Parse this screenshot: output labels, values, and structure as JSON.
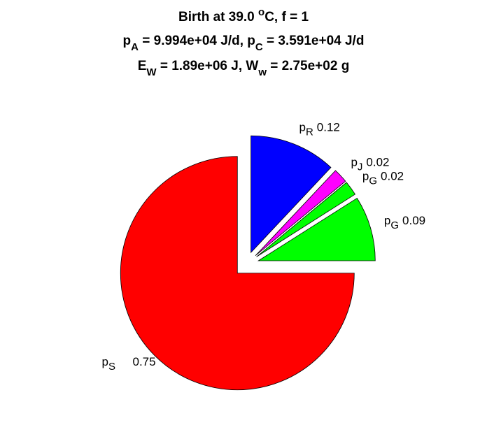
{
  "chart_data": {
    "type": "pie",
    "title": [
      [
        "Birth at 39.0 ",
        "o",
        "C, f = 1"
      ],
      [
        "p",
        "A",
        " = 9.994e+04 J/d, p",
        "C",
        " = 3.591e+04 J/d"
      ],
      [
        "E",
        "W",
        " = 1.89e+06 J, W",
        "w",
        " = 2.75e+02 g"
      ]
    ],
    "categories": [
      "pS",
      "pG",
      "pG",
      "pJ",
      "pR"
    ],
    "values": [
      0.75,
      0.09,
      0.02,
      0.02,
      0.12
    ],
    "colors": [
      "#ff0000",
      "#00ff00",
      "#00ff00",
      "#ff00ff",
      "#0000ff"
    ],
    "explode": [
      1,
      1,
      1,
      1,
      1
    ]
  }
}
